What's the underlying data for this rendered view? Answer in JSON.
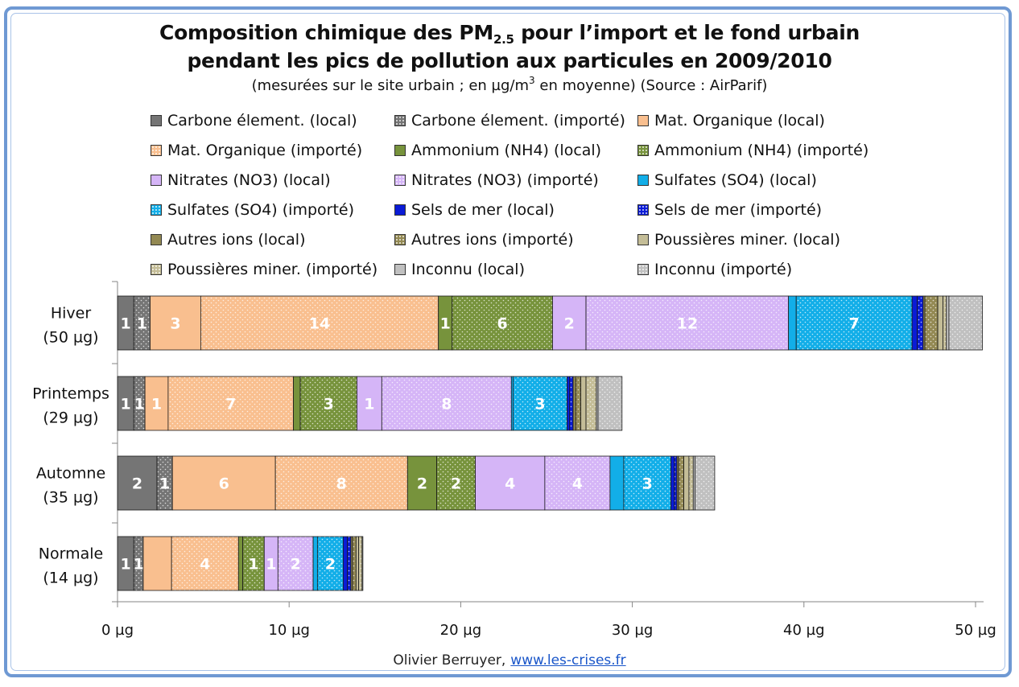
{
  "title_line1_main": "Composition chimique des PM",
  "title_line1_sub": "2.5",
  "title_line1_rest": " pour l’import et le fond urbain",
  "title_line2": "pendant les pics de pollution aux particules en 2009/2010",
  "subtitle_pre": "(mesurées sur le site urbain ; en µg/m",
  "subtitle_sup": "3",
  "subtitle_post": " en moyenne) (Source : AirParif)",
  "credit": {
    "author": "Olivier Berruyer,",
    "link": "www.les-crises.fr"
  },
  "colors": {
    "carbone": "#757575",
    "organique": "#f9bf8f",
    "ammonium": "#77933c",
    "nitrates": "#d5b5f7",
    "sulfates": "#12aee8",
    "sels": "#0a1bd6",
    "autres": "#938953",
    "poussieres": "#c4bd97",
    "inconnu": "#c0c0c0"
  },
  "chart_data": {
    "type": "bar",
    "orientation": "horizontal",
    "stacked": true,
    "unit": "µg",
    "xlim": [
      0,
      50
    ],
    "xticks": [
      "0 µg",
      "10 µg",
      "20 µg",
      "30 µg",
      "40 µg",
      "50 µg"
    ],
    "xtick_values": [
      0,
      10,
      20,
      30,
      40,
      50
    ],
    "categories": [
      [
        "Hiver",
        "(50 µg)"
      ],
      [
        "Printemps",
        "(29 µg)"
      ],
      [
        "Automne",
        "(35 µg)"
      ],
      [
        "Normale",
        "(14 µg)"
      ]
    ],
    "series": [
      {
        "name": "Carbone élement. (local)",
        "color": "carbone",
        "pattern": "solid",
        "values": [
          0.95,
          0.95,
          2.3,
          0.95
        ],
        "labels": [
          "1",
          "1",
          "2",
          "1"
        ]
      },
      {
        "name": "Carbone élement. (importé)",
        "color": "carbone",
        "pattern": "dots",
        "values": [
          0.95,
          0.65,
          0.9,
          0.55
        ],
        "labels": [
          "1",
          "1",
          "1",
          "1"
        ]
      },
      {
        "name": "Mat. Organique (local)",
        "color": "organique",
        "pattern": "solid",
        "values": [
          2.95,
          1.35,
          6.0,
          1.65
        ],
        "labels": [
          "3",
          "1",
          "6",
          ""
        ]
      },
      {
        "name": "Mat. Organique (importé)",
        "color": "organique",
        "pattern": "dots",
        "values": [
          13.85,
          7.3,
          7.7,
          3.9
        ],
        "labels": [
          "14",
          "7",
          "8",
          "4"
        ]
      },
      {
        "name": "Ammonium (NH4) (local)",
        "color": "ammonium",
        "pattern": "solid",
        "values": [
          0.8,
          0.4,
          1.7,
          0.25
        ],
        "labels": [
          "1",
          "",
          "2",
          ""
        ]
      },
      {
        "name": "Ammonium (NH4) (importé)",
        "color": "ammonium",
        "pattern": "dots",
        "values": [
          5.85,
          3.3,
          2.25,
          1.25
        ],
        "labels": [
          "6",
          "3",
          "2",
          "1"
        ]
      },
      {
        "name": "Nitrates (NO3) (local)",
        "color": "nitrates",
        "pattern": "solid",
        "values": [
          1.95,
          1.45,
          4.05,
          0.8
        ],
        "labels": [
          "2",
          "1",
          "4",
          "1"
        ]
      },
      {
        "name": "Nitrates (NO3) (importé)",
        "color": "nitrates",
        "pattern": "dots",
        "values": [
          11.8,
          7.55,
          3.8,
          2.05
        ],
        "labels": [
          "12",
          "8",
          "4",
          "2"
        ]
      },
      {
        "name": "Sulfates (SO4) (local)",
        "color": "sulfates",
        "pattern": "solid",
        "values": [
          0.45,
          0.1,
          0.8,
          0.25
        ],
        "labels": [
          "",
          "",
          "",
          ""
        ]
      },
      {
        "name": "Sulfates (SO4) (importé)",
        "color": "sulfates",
        "pattern": "dots",
        "values": [
          6.75,
          3.15,
          2.75,
          1.5
        ],
        "labels": [
          "7",
          "3",
          "3",
          "2"
        ]
      },
      {
        "name": "Sels de mer (local)",
        "color": "sels",
        "pattern": "solid",
        "values": [
          0.3,
          0.15,
          0.2,
          0.25
        ],
        "labels": [
          "",
          "",
          "",
          ""
        ]
      },
      {
        "name": "Sels de mer (importé)",
        "color": "sels",
        "pattern": "dots",
        "values": [
          0.35,
          0.2,
          0.15,
          0.2
        ],
        "labels": [
          "",
          "",
          "",
          ""
        ]
      },
      {
        "name": "Autres ions (local)",
        "color": "autres",
        "pattern": "solid",
        "values": [
          0.1,
          0.15,
          0.1,
          0.1
        ],
        "labels": [
          "",
          "",
          "",
          ""
        ]
      },
      {
        "name": "Autres ions (importé)",
        "color": "autres",
        "pattern": "dots",
        "values": [
          0.75,
          0.3,
          0.3,
          0.2
        ],
        "labels": [
          "",
          "",
          "",
          ""
        ]
      },
      {
        "name": "Poussières miner. (local)",
        "color": "poussieres",
        "pattern": "solid",
        "values": [
          0.3,
          0.3,
          0.3,
          0.15
        ],
        "labels": [
          "",
          "",
          "",
          ""
        ]
      },
      {
        "name": "Poussières miner. (importé)",
        "color": "poussieres",
        "pattern": "dots",
        "values": [
          0.2,
          0.6,
          0.25,
          0.2
        ],
        "labels": [
          "",
          "",
          "",
          ""
        ]
      },
      {
        "name": "Inconnu (local)",
        "color": "inconnu",
        "pattern": "solid",
        "values": [
          0.15,
          0.1,
          0.1,
          0.05
        ],
        "labels": [
          "",
          "",
          "",
          ""
        ]
      },
      {
        "name": "Inconnu (importé)",
        "color": "inconnu",
        "pattern": "dots",
        "values": [
          1.95,
          1.4,
          1.15,
          0.0
        ],
        "labels": [
          "",
          "",
          "",
          ""
        ]
      }
    ],
    "legend_position": "top"
  }
}
